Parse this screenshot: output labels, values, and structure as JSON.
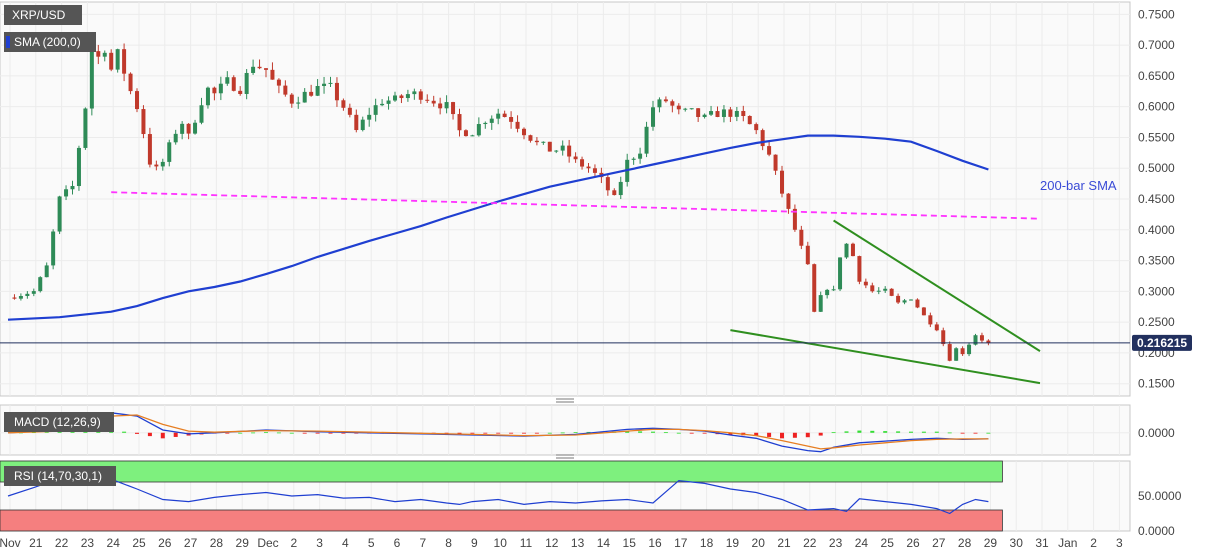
{
  "labels": {
    "symbol": "XRP/USD",
    "sma": "SMA (200,0)",
    "sma_annotation": "200-bar SMA",
    "macd": "MACD (12,26,9)",
    "rsi": "RSI (14,70,30,1)",
    "last_price": "0.216215"
  },
  "colors": {
    "bull": "#2e8b57",
    "bear": "#c0392b",
    "sma": "#1f3fd1",
    "resistance": "#ff33ff",
    "trendline": "#2f8f1f",
    "macd_line": "#1f3fd1",
    "signal_line": "#e67e22",
    "hist_pos": "#33dd33",
    "hist_neg": "#ee2222",
    "rsi_line": "#1f3fd1",
    "rsi_overbought": "#7ef07e",
    "rsi_oversold": "#f57f7f",
    "label_box": "#555555"
  },
  "chart_data": [
    {
      "type": "candlestick",
      "title": "XRP/USD",
      "x_tick_labels": [
        "Nov",
        "21",
        "22",
        "23",
        "24",
        "25",
        "26",
        "27",
        "28",
        "29",
        "Dec",
        "2",
        "3",
        "4",
        "5",
        "6",
        "7",
        "8",
        "9",
        "10",
        "11",
        "12",
        "13",
        "14",
        "15",
        "16",
        "17",
        "18",
        "19",
        "20",
        "21",
        "22",
        "23",
        "24",
        "25",
        "26",
        "27",
        "28",
        "29",
        "30",
        "31",
        "Jan",
        "2",
        "3"
      ],
      "y_tick_labels": [
        "0.7500",
        "0.7000",
        "0.6500",
        "0.6000",
        "0.5500",
        "0.5000",
        "0.4500",
        "0.4000",
        "0.3500",
        "0.3000",
        "0.2500",
        "0.2000",
        "0.1500"
      ],
      "ylim": [
        0.13,
        0.77
      ],
      "last_price": 0.216215,
      "close_path": [
        [
          0,
          0.29
        ],
        [
          1,
          0.3
        ],
        [
          1.5,
          0.34
        ],
        [
          2,
          0.45
        ],
        [
          2.5,
          0.47
        ],
        [
          3,
          0.6
        ],
        [
          3.3,
          0.71
        ],
        [
          3.5,
          0.68
        ],
        [
          3.8,
          0.7
        ],
        [
          4,
          0.66
        ],
        [
          4.3,
          0.69
        ],
        [
          4.6,
          0.64
        ],
        [
          5,
          0.6
        ],
        [
          5.3,
          0.55
        ],
        [
          5.6,
          0.49
        ],
        [
          6,
          0.51
        ],
        [
          6.4,
          0.55
        ],
        [
          6.7,
          0.58
        ],
        [
          7,
          0.55
        ],
        [
          7.4,
          0.6
        ],
        [
          7.7,
          0.63
        ],
        [
          8,
          0.62
        ],
        [
          8.5,
          0.64
        ],
        [
          9,
          0.63
        ],
        [
          9.5,
          0.67
        ],
        [
          10,
          0.66
        ],
        [
          10.4,
          0.63
        ],
        [
          11,
          0.61
        ],
        [
          11.5,
          0.62
        ],
        [
          12,
          0.63
        ],
        [
          12.5,
          0.63
        ],
        [
          13,
          0.6
        ],
        [
          13.5,
          0.56
        ],
        [
          14,
          0.59
        ],
        [
          14.5,
          0.61
        ],
        [
          15,
          0.61
        ],
        [
          15.5,
          0.62
        ],
        [
          16,
          0.62
        ],
        [
          16.5,
          0.61
        ],
        [
          17,
          0.6
        ],
        [
          17.5,
          0.56
        ],
        [
          18,
          0.56
        ],
        [
          18.5,
          0.58
        ],
        [
          19,
          0.59
        ],
        [
          19.5,
          0.58
        ],
        [
          20,
          0.56
        ],
        [
          20.5,
          0.54
        ],
        [
          21,
          0.53
        ],
        [
          21.5,
          0.53
        ],
        [
          22,
          0.51
        ],
        [
          22.5,
          0.5
        ],
        [
          23,
          0.48
        ],
        [
          23.5,
          0.45
        ],
        [
          24,
          0.51
        ],
        [
          24.5,
          0.53
        ],
        [
          25,
          0.6
        ],
        [
          25.5,
          0.61
        ],
        [
          26,
          0.59
        ],
        [
          26.5,
          0.59
        ],
        [
          27,
          0.58
        ],
        [
          27.5,
          0.59
        ],
        [
          28,
          0.59
        ],
        [
          28.5,
          0.58
        ],
        [
          29,
          0.56
        ],
        [
          29.5,
          0.52
        ],
        [
          30,
          0.46
        ],
        [
          30.5,
          0.4
        ],
        [
          31,
          0.34
        ],
        [
          31.3,
          0.25
        ],
        [
          31.6,
          0.31
        ],
        [
          32,
          0.3
        ],
        [
          32.3,
          0.37
        ],
        [
          32.6,
          0.38
        ],
        [
          33,
          0.32
        ],
        [
          33.5,
          0.3
        ],
        [
          34,
          0.3
        ],
        [
          34.5,
          0.28
        ],
        [
          35,
          0.29
        ],
        [
          35.5,
          0.26
        ],
        [
          36,
          0.24
        ],
        [
          36.3,
          0.21
        ],
        [
          36.5,
          0.19
        ],
        [
          36.8,
          0.21
        ],
        [
          37,
          0.2
        ],
        [
          37.5,
          0.23
        ],
        [
          37.8,
          0.22
        ],
        [
          38,
          0.216
        ]
      ],
      "sma_200": {
        "name": "SMA (200,0)",
        "x": [
          0,
          2,
          4,
          5,
          6,
          7,
          8,
          9,
          10,
          11,
          12,
          13,
          14,
          15,
          16,
          17,
          18,
          19,
          20,
          21,
          22,
          23,
          24,
          25,
          26,
          27,
          28,
          29,
          30,
          31,
          32,
          33,
          34,
          35,
          36,
          37,
          38
        ],
        "values": [
          0.254,
          0.258,
          0.267,
          0.276,
          0.289,
          0.3,
          0.307,
          0.316,
          0.328,
          0.341,
          0.356,
          0.369,
          0.382,
          0.394,
          0.406,
          0.42,
          0.433,
          0.446,
          0.458,
          0.47,
          0.479,
          0.488,
          0.497,
          0.506,
          0.515,
          0.524,
          0.533,
          0.541,
          0.547,
          0.553,
          0.553,
          0.551,
          0.548,
          0.543,
          0.528,
          0.512,
          0.498
        ]
      },
      "resistance_line": {
        "x": [
          4,
          40
        ],
        "values": [
          0.461,
          0.418
        ]
      },
      "falling_wedge": {
        "upper": {
          "x": [
            32,
            40
          ],
          "values": [
            0.415,
            0.203
          ]
        },
        "lower": {
          "x": [
            28,
            40
          ],
          "values": [
            0.237,
            0.151
          ]
        }
      }
    },
    {
      "type": "line",
      "title": "MACD (12,26,9)",
      "y_tick_labels": [
        "0.0000"
      ],
      "ylim": [
        -0.04,
        0.05
      ],
      "macd": {
        "x": [
          0,
          2,
          3,
          4,
          5,
          6,
          7,
          8,
          10,
          12,
          14,
          16,
          18,
          20,
          22,
          24,
          25,
          26,
          27,
          28,
          29,
          30,
          31,
          31.5,
          32,
          33,
          34,
          35,
          36,
          37,
          38
        ],
        "values": [
          0.0,
          0.005,
          0.028,
          0.036,
          0.03,
          0.005,
          -0.002,
          0.0,
          0.005,
          0.002,
          0.0,
          -0.002,
          -0.004,
          -0.006,
          -0.003,
          0.006,
          0.008,
          0.006,
          0.003,
          -0.004,
          -0.01,
          -0.024,
          -0.032,
          -0.034,
          -0.026,
          -0.018,
          -0.015,
          -0.012,
          -0.01,
          -0.012,
          -0.011
        ]
      },
      "signal": {
        "x": [
          0,
          2,
          3,
          4,
          5,
          6,
          7,
          8,
          10,
          12,
          14,
          16,
          18,
          20,
          22,
          24,
          25,
          26,
          27,
          28,
          29,
          30,
          31,
          31.5,
          32,
          33,
          34,
          35,
          36,
          37,
          38
        ],
        "values": [
          0.0,
          0.003,
          0.018,
          0.03,
          0.032,
          0.015,
          0.003,
          0.001,
          0.004,
          0.003,
          0.001,
          -0.001,
          -0.003,
          -0.005,
          -0.004,
          0.003,
          0.006,
          0.006,
          0.004,
          0.0,
          -0.005,
          -0.014,
          -0.024,
          -0.029,
          -0.027,
          -0.022,
          -0.018,
          -0.014,
          -0.012,
          -0.011,
          -0.011
        ]
      }
    },
    {
      "type": "line",
      "title": "RSI (14,70,30,1)",
      "y_tick_labels": [
        "50.0000",
        "0.0000"
      ],
      "ylim": [
        0,
        100
      ],
      "overbought": 70,
      "oversold": 30,
      "rsi": {
        "x": [
          0,
          1,
          2,
          3,
          3.5,
          4,
          5,
          6,
          7,
          8,
          9,
          10,
          11,
          12,
          13,
          14,
          15,
          16,
          17,
          17.5,
          18,
          19,
          20,
          21,
          22,
          23,
          24,
          25,
          26,
          27,
          28,
          29,
          30,
          31,
          32,
          32.5,
          33,
          34,
          35,
          36,
          36.5,
          37,
          37.5,
          38
        ],
        "values": [
          50,
          62,
          75,
          88,
          82,
          74,
          60,
          45,
          42,
          48,
          52,
          55,
          50,
          52,
          47,
          48,
          42,
          45,
          40,
          38,
          42,
          45,
          38,
          42,
          40,
          43,
          45,
          40,
          72,
          68,
          60,
          55,
          45,
          30,
          32,
          28,
          46,
          42,
          38,
          32,
          25,
          38,
          45,
          42
        ]
      }
    }
  ]
}
